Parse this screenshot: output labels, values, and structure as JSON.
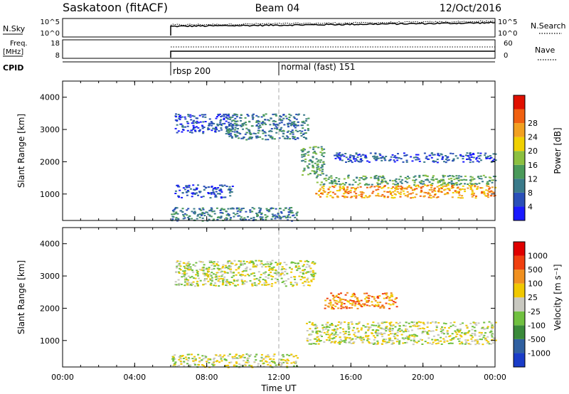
{
  "header": {
    "site": "Saskatoon (fitACF)",
    "beam": "Beam 04",
    "date": "12/Oct/2016"
  },
  "top_panels": {
    "nsky_label": "N.Sky",
    "nsky_ticks": [
      "10^5",
      "10^0"
    ],
    "nsearch_ticks": [
      "10^5",
      "10^0"
    ],
    "nsearch_label": "N.Search",
    "freq_label_1": "Freq.",
    "freq_label_2": "[MHz]",
    "freq_ticks": [
      "18",
      "8"
    ],
    "nave_ticks": [
      "60",
      "0"
    ],
    "nave_label": "Nave",
    "cpid_label": "CPID",
    "cpid_modes": [
      {
        "name": "rbsp 200",
        "start_hour": 6
      },
      {
        "name": "normal (fast) 151",
        "start_hour": 12
      }
    ]
  },
  "chart_data": [
    {
      "type": "heatmap",
      "title": "",
      "ylabel": "Slant Range [km]",
      "xlim": [
        0,
        24
      ],
      "ylim": [
        180,
        4500
      ],
      "yticks": [
        "1000",
        "2000",
        "3000",
        "4000"
      ],
      "colorbar": {
        "label": "Power [dB]",
        "ticks": [
          "4",
          "8",
          "12",
          "16",
          "20",
          "24",
          "28"
        ],
        "colors": [
          "#1a1aff",
          "#2a4fb8",
          "#3a7a8a",
          "#4a9a5a",
          "#8cc040",
          "#f0d000",
          "#f2a020",
          "#f06010",
          "#e01000"
        ]
      },
      "regions": [
        {
          "x": [
            6.2,
            9.4
          ],
          "y": [
            2900,
            3500
          ],
          "level": 1
        },
        {
          "x": [
            9.0,
            13.6
          ],
          "y": [
            2700,
            3500
          ],
          "level": 2
        },
        {
          "x": [
            13.2,
            14.5
          ],
          "y": [
            1600,
            2500
          ],
          "level": 3
        },
        {
          "x": [
            14.0,
            24.0
          ],
          "y": [
            1300,
            1600
          ],
          "level": 3
        },
        {
          "x": [
            14.0,
            24.0
          ],
          "y": [
            900,
            1300
          ],
          "level": 6
        },
        {
          "x": [
            6.2,
            9.4
          ],
          "y": [
            900,
            1300
          ],
          "level": 1
        },
        {
          "x": [
            6.0,
            13.0
          ],
          "y": [
            180,
            600
          ],
          "level": 2
        },
        {
          "x": [
            15.0,
            24.0
          ],
          "y": [
            2000,
            2300
          ],
          "level": 1
        }
      ]
    },
    {
      "type": "heatmap",
      "title": "",
      "ylabel": "Slant Range [km]",
      "xlabel": "Time UT",
      "xlim": [
        0,
        24
      ],
      "xticks": [
        "00:00",
        "04:00",
        "08:00",
        "12:00",
        "16:00",
        "20:00",
        "00:00"
      ],
      "ylim": [
        180,
        4500
      ],
      "yticks": [
        "1000",
        "2000",
        "3000",
        "4000"
      ],
      "colorbar": {
        "label": "Velocity [m s⁻¹]",
        "ticks": [
          "1000",
          "500",
          "100",
          "25",
          "-25",
          "-100",
          "-500",
          "-1000"
        ],
        "colors": [
          "#1a3cc8",
          "#3060a0",
          "#3a8a3a",
          "#70c040",
          "#c8c8c0",
          "#f0c800",
          "#f09020",
          "#f04010",
          "#e00000"
        ]
      },
      "regions": [
        {
          "x": [
            6.2,
            14.0
          ],
          "y": [
            2700,
            3500
          ],
          "level": 4
        },
        {
          "x": [
            13.5,
            24.0
          ],
          "y": [
            900,
            1600
          ],
          "level": 4
        },
        {
          "x": [
            6.0,
            13.0
          ],
          "y": [
            180,
            600
          ],
          "level": 4
        },
        {
          "x": [
            14.5,
            18.5
          ],
          "y": [
            2000,
            2500
          ],
          "level": 6
        }
      ]
    }
  ]
}
